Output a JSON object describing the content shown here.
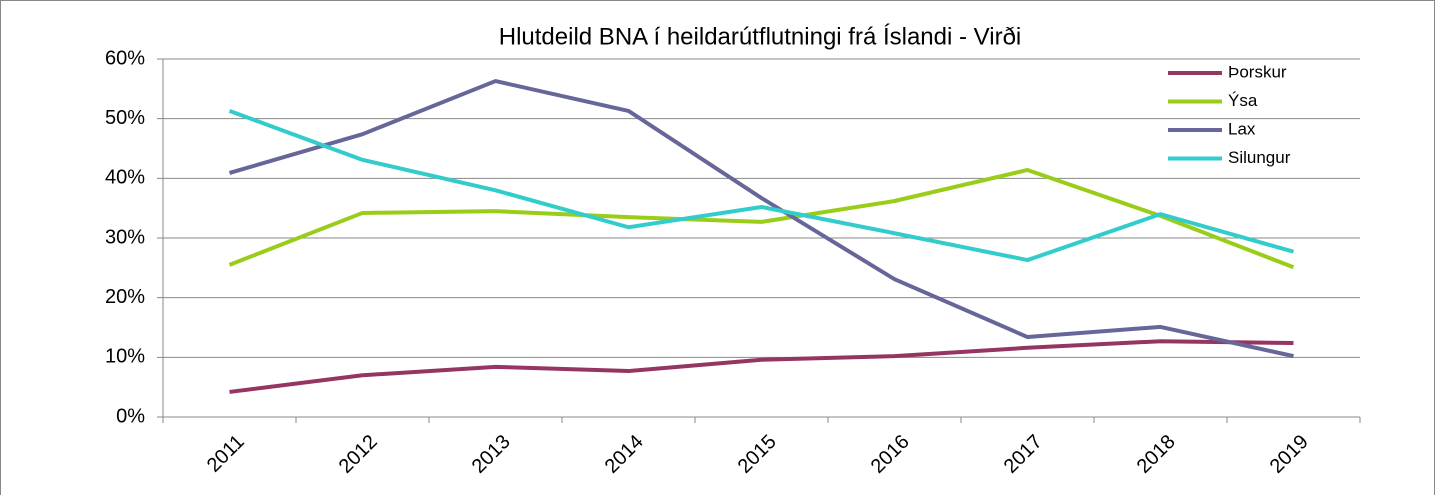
{
  "chart_data": {
    "type": "line",
    "title": "Hlutdeild BNA í heildarútflutningi frá Íslandi - Virði",
    "categories": [
      "2011",
      "2012",
      "2013",
      "2014",
      "2015",
      "2016",
      "2017",
      "2018",
      "2019"
    ],
    "series": [
      {
        "name": "Þorskur",
        "color": "#953562",
        "values": [
          4.2,
          7.0,
          8.4,
          7.7,
          9.6,
          10.2,
          11.6,
          12.7,
          12.4
        ]
      },
      {
        "name": "Ýsa",
        "color": "#9acd1a",
        "values": [
          25.5,
          34.2,
          34.5,
          33.5,
          32.7,
          36.2,
          41.4,
          33.7,
          25.1
        ]
      },
      {
        "name": "Lax",
        "color": "#666699",
        "values": [
          40.9,
          47.4,
          56.3,
          51.3,
          36.7,
          23.1,
          13.4,
          15.1,
          10.2
        ]
      },
      {
        "name": "Silungur",
        "color": "#33cccc",
        "values": [
          51.3,
          43.1,
          38.0,
          31.8,
          35.2,
          30.8,
          26.3,
          34.0,
          27.7
        ]
      }
    ],
    "ylim": [
      0,
      60
    ],
    "yticks": [
      {
        "value": 0,
        "label": "0%"
      },
      {
        "value": 10,
        "label": "10%"
      },
      {
        "value": 20,
        "label": "20%"
      },
      {
        "value": 30,
        "label": "30%"
      },
      {
        "value": 40,
        "label": "40%"
      },
      {
        "value": 50,
        "label": "50%"
      },
      {
        "value": 60,
        "label": "60%"
      }
    ],
    "grid": true,
    "legend": "top-right"
  }
}
